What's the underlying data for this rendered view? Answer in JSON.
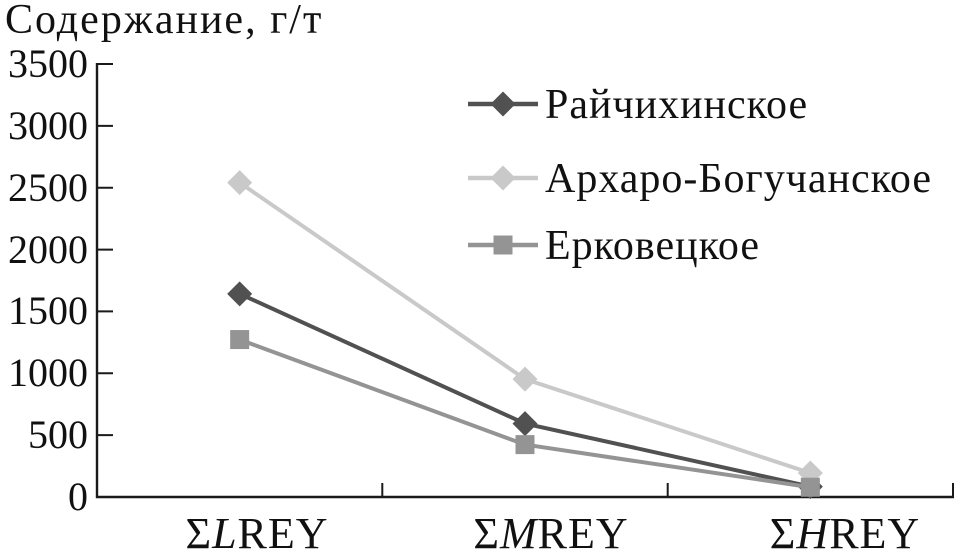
{
  "title": "Содержание, г/т",
  "chart_data": {
    "type": "line",
    "title": "Содержание, г/т",
    "ylabel": "Содержание, г/т",
    "xlabel": "",
    "ylim": [
      0,
      3500
    ],
    "ytick_step": 500,
    "ytick_labels": [
      "3500",
      "3000",
      "2500",
      "2000",
      "1500",
      "1000",
      "500",
      "0"
    ],
    "grid": false,
    "legend_position": "upper-right",
    "categories": [
      {
        "prefix": "Σ",
        "em": "L",
        "suffix": "REY"
      },
      {
        "prefix": "Σ",
        "em": "M",
        "suffix": "REY"
      },
      {
        "prefix": "Σ",
        "em": "H",
        "suffix": "REY"
      }
    ],
    "series": [
      {
        "name": "Райчихинское",
        "marker": "diamond",
        "color": "#515151",
        "values": [
          1640,
          590,
          80
        ]
      },
      {
        "name": "Архаро-Богучанское",
        "marker": "diamond",
        "color": "#c9c9c9",
        "values": [
          2540,
          950,
          190
        ]
      },
      {
        "name": "Ерковецкое",
        "marker": "square",
        "color": "#949494",
        "values": [
          1270,
          420,
          75
        ]
      }
    ],
    "axis_color": "#1a1a1a"
  }
}
